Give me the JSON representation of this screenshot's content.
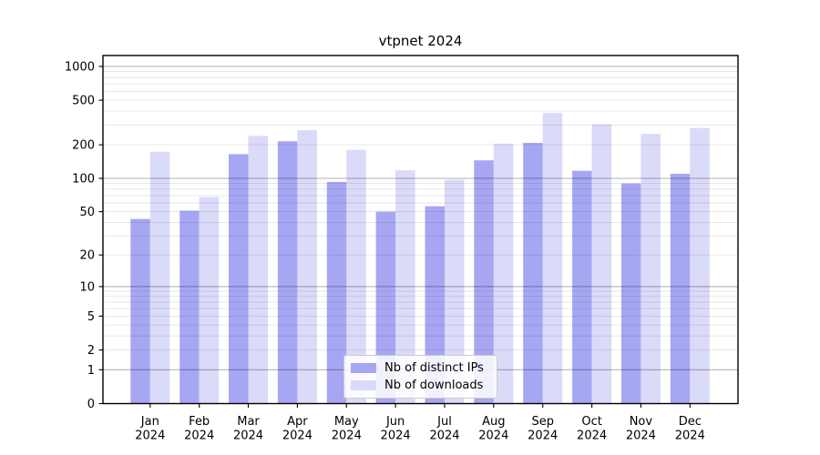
{
  "chart_data": {
    "type": "bar",
    "title": "vtpnet 2024",
    "categories": [
      "Jan 2024",
      "Feb 2024",
      "Mar 2024",
      "Apr 2024",
      "May 2024",
      "Jun 2024",
      "Jul 2024",
      "Aug 2024",
      "Sep 2024",
      "Oct 2024",
      "Nov 2024",
      "Dec 2024"
    ],
    "series": [
      {
        "name": "Nb of distinct IPs",
        "color": "#a6a6f3",
        "values": [
          43,
          51,
          165,
          215,
          93,
          50,
          56,
          145,
          208,
          117,
          90,
          110
        ]
      },
      {
        "name": "Nb of downloads",
        "color": "#dadaf9",
        "values": [
          173,
          68,
          240,
          270,
          180,
          118,
          97,
          205,
          385,
          305,
          250,
          282
        ]
      }
    ],
    "xlabel": "",
    "ylabel": "",
    "yscale": "log1p",
    "yticks": [
      0,
      1,
      2,
      5,
      10,
      20,
      50,
      100,
      200,
      500,
      1000
    ],
    "ytick_labels": [
      "0",
      "1",
      "2",
      "5",
      "10",
      "20",
      "50",
      "100",
      "200",
      "500",
      "1000"
    ],
    "ylim": [
      0,
      1250
    ],
    "grid": true,
    "legend_position": "lower center"
  },
  "colors": {
    "background": "#ffffff",
    "bar_distinct_ips": "#a6a6f3",
    "bar_downloads": "#dadaf9",
    "spine": "#000000",
    "grid_major": "#b3b3b3",
    "grid_minor": "#e5e5e5",
    "text": "#000000",
    "legend_border": "#cccccc",
    "legend_background": "#ffffff"
  }
}
